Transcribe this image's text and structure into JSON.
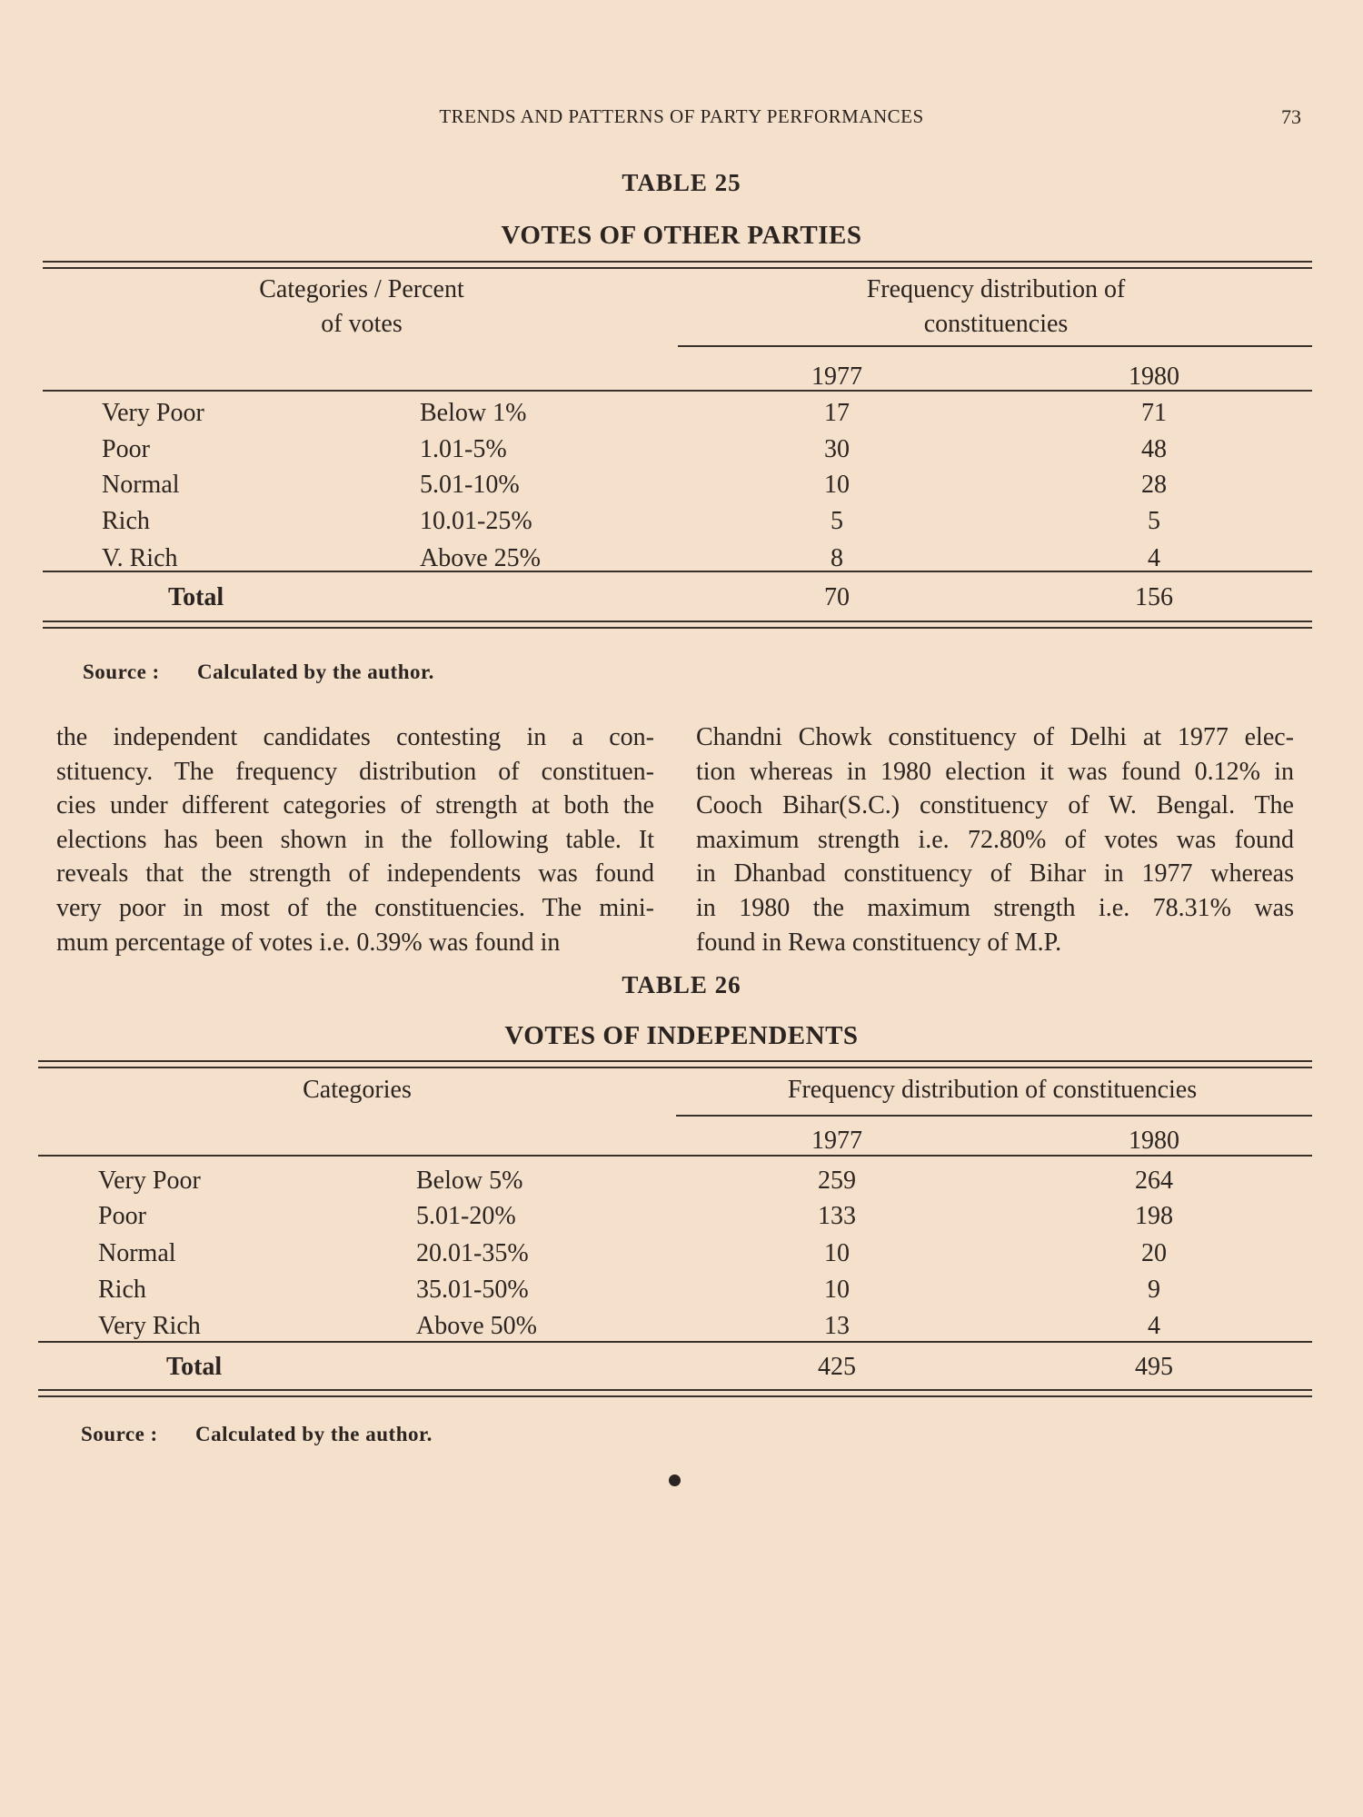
{
  "page": {
    "running_header": "TRENDS AND PATTERNS OF PARTY PERFORMANCES",
    "page_number": "73"
  },
  "table25": {
    "number": "TABLE 25",
    "title": "VOTES OF OTHER PARTIES",
    "col_header_left": [
      "Categories / Percent",
      "of votes"
    ],
    "col_header_right": [
      "Frequency distribution of",
      "constituencies"
    ],
    "years": [
      "1977",
      "1980"
    ],
    "rows": [
      {
        "category": "Very Poor",
        "range": "Below 1%",
        "y1977": "17",
        "y1980": "71"
      },
      {
        "category": "Poor",
        "range": "1.01-5%",
        "y1977": "30",
        "y1980": "48"
      },
      {
        "category": "Normal",
        "range": "5.01-10%",
        "y1977": "10",
        "y1980": "28"
      },
      {
        "category": "Rich",
        "range": "10.01-25%",
        "y1977": "5",
        "y1980": "5"
      },
      {
        "category": "V. Rich",
        "range": "Above 25%",
        "y1977": "8",
        "y1980": "4"
      }
    ],
    "total": {
      "label": "Total",
      "y1977": "70",
      "y1980": "156"
    },
    "source_label": "Source :",
    "source_text": "Calculated by the author."
  },
  "body_text": {
    "left_lines": [
      "the independent candidates contesting in a con-",
      "stituency. The frequency distribution of constituen-",
      "cies under different categories of strength at both the",
      "elections has been shown in the following table. It",
      "reveals that the strength of independents was found",
      "very poor in most of the constituencies. The mini-",
      "mum percentage of votes i.e. 0.39% was found in"
    ],
    "right_lines": [
      "Chandni Chowk constituency of Delhi at 1977 elec-",
      "tion whereas in 1980 election it was found 0.12% in",
      "Cooch Bihar(S.C.) constituency of W. Bengal. The",
      "maximum strength i.e. 72.80% of votes was found",
      "in Dhanbad constituency of Bihar in 1977 whereas",
      "in 1980 the maximum strength i.e. 78.31% was",
      "found in Rewa constituency of M.P."
    ]
  },
  "table26": {
    "number": "TABLE 26",
    "title": "VOTES OF INDEPENDENTS",
    "col_header_left": [
      "Categories"
    ],
    "col_header_right": [
      "Frequency distribution of constituencies"
    ],
    "years": [
      "1977",
      "1980"
    ],
    "rows": [
      {
        "category": "Very Poor",
        "range": "Below 5%",
        "y1977": "259",
        "y1980": "264"
      },
      {
        "category": "Poor",
        "range": "5.01-20%",
        "y1977": "133",
        "y1980": "198"
      },
      {
        "category": "Normal",
        "range": "20.01-35%",
        "y1977": "10",
        "y1980": "20"
      },
      {
        "category": "Rich",
        "range": "35.01-50%",
        "y1977": "10",
        "y1980": "9"
      },
      {
        "category": "Very Rich",
        "range": "Above 50%",
        "y1977": "13",
        "y1980": "4"
      }
    ],
    "total": {
      "label": "Total",
      "y1977": "425",
      "y1980": "495"
    },
    "source_label": "Source :",
    "source_text": "Calculated by the author."
  }
}
